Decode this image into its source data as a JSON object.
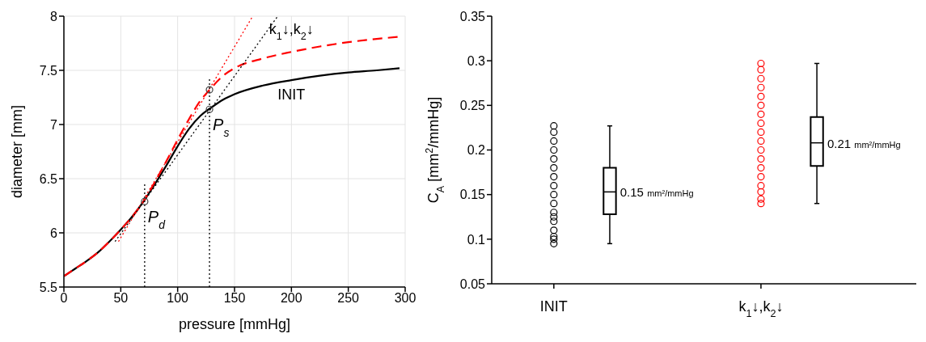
{
  "chart_data": [
    {
      "type": "line",
      "xlabel": "pressure [mmHg]",
      "ylabel": "diameter [mm]",
      "xlim": [
        0,
        300
      ],
      "ylim": [
        5.5,
        8
      ],
      "xticks": [
        0,
        50,
        100,
        150,
        200,
        250,
        300
      ],
      "yticks": [
        5.5,
        6,
        6.5,
        7,
        7.5,
        8
      ],
      "grid": true,
      "annotations": [
        {
          "text": "P$_{d}$",
          "x": 71,
          "y": 6.29
        },
        {
          "text": "P$_{s}$",
          "x": 128,
          "y": 7.14
        }
      ],
      "series": [
        {
          "name": "INIT",
          "color": "#000000",
          "line_style": "solid",
          "x": [
            0,
            10,
            20,
            30,
            40,
            50,
            60,
            70,
            80,
            90,
            100,
            110,
            120,
            130,
            140,
            150,
            175,
            200,
            225,
            250,
            275,
            295
          ],
          "values": [
            5.6,
            5.67,
            5.74,
            5.82,
            5.92,
            6.03,
            6.15,
            6.29,
            6.45,
            6.62,
            6.8,
            6.96,
            7.08,
            7.16,
            7.23,
            7.28,
            7.36,
            7.41,
            7.45,
            7.48,
            7.5,
            7.52
          ]
        },
        {
          "name": "k$_{1}$↓,k$_{2}$↓",
          "color": "#ff0000",
          "line_style": "dashed",
          "x": [
            0,
            10,
            20,
            30,
            40,
            50,
            60,
            70,
            80,
            90,
            100,
            110,
            120,
            128,
            140,
            150,
            175,
            200,
            225,
            250,
            275,
            295
          ],
          "values": [
            5.6,
            5.67,
            5.74,
            5.82,
            5.92,
            6.03,
            6.15,
            6.29,
            6.47,
            6.66,
            6.86,
            7.05,
            7.22,
            7.32,
            7.45,
            7.52,
            7.61,
            7.67,
            7.72,
            7.76,
            7.79,
            7.81
          ]
        },
        {
          "color": "#ff0000",
          "line_style": "dotted",
          "x": [
            48,
            166
          ],
          "values": [
            5.92,
            8
          ]
        },
        {
          "color": "#000000",
          "line_style": "dotted",
          "x": [
            45,
            188
          ],
          "values": [
            5.92,
            8
          ]
        },
        {
          "color": "#000000",
          "line_style": "dotted",
          "x": [
            71,
            71
          ],
          "values": [
            5.5,
            6.47
          ]
        },
        {
          "color": "#000000",
          "line_style": "dotted",
          "x": [
            128,
            128
          ],
          "values": [
            5.5,
            7.43
          ]
        },
        {
          "type": "scatter",
          "marker": "circle",
          "color": "#404040",
          "x": [
            71,
            128,
            128
          ],
          "values": [
            6.29,
            7.14,
            7.32
          ]
        }
      ]
    },
    {
      "type": "box",
      "ylabel": "C$_{A}$ [mm$^{2}$/mmHg]",
      "categories": [
        "INIT",
        "k$_{1}$↓,k$_{2}$↓"
      ],
      "ylim": [
        0.05,
        0.35
      ],
      "yticks": [
        0.05,
        0.1,
        0.15,
        0.2,
        0.25,
        0.3,
        0.35
      ],
      "boxes": [
        {
          "low": 0.095,
          "q1": 0.128,
          "median": 0.153,
          "q3": 0.18,
          "high": 0.227
        },
        {
          "low": 0.14,
          "q1": 0.182,
          "median": 0.208,
          "q3": 0.237,
          "high": 0.297
        }
      ],
      "annotations": [
        "0.15 mm²/mmHg",
        "0.21 mm²/mmHg"
      ],
      "series": [
        {
          "type": "scatter",
          "marker": "circle",
          "color": "#000000",
          "x": [
            "INIT",
            "INIT",
            "INIT",
            "INIT",
            "INIT",
            "INIT",
            "INIT",
            "INIT",
            "INIT",
            "INIT",
            "INIT",
            "INIT",
            "INIT",
            "INIT",
            "INIT",
            "INIT",
            "INIT"
          ],
          "values": [
            0.095,
            0.1,
            0.103,
            0.11,
            0.12,
            0.125,
            0.13,
            0.14,
            0.15,
            0.16,
            0.17,
            0.18,
            0.19,
            0.2,
            0.21,
            0.22,
            0.227
          ]
        },
        {
          "type": "scatter",
          "marker": "circle",
          "color": "#ff0000",
          "x": [
            "k$_{1}$↓,k$_{2}$↓",
            "k$_{1}$↓,k$_{2}$↓",
            "k$_{1}$↓,k$_{2}$↓",
            "k$_{1}$↓,k$_{2}$↓",
            "k$_{1}$↓,k$_{2}$↓",
            "k$_{1}$↓,k$_{2}$↓",
            "k$_{1}$↓,k$_{2}$↓",
            "k$_{1}$↓,k$_{2}$↓",
            "k$_{1}$↓,k$_{2}$↓",
            "k$_{1}$↓,k$_{2}$↓",
            "k$_{1}$↓,k$_{2}$↓",
            "k$_{1}$↓,k$_{2}$↓",
            "k$_{1}$↓,k$_{2}$↓",
            "k$_{1}$↓,k$_{2}$↓",
            "k$_{1}$↓,k$_{2}$↓",
            "k$_{1}$↓,k$_{2}$↓",
            "k$_{1}$↓,k$_{2}$↓",
            "k$_{1}$↓,k$_{2}$↓"
          ],
          "values": [
            0.14,
            0.145,
            0.153,
            0.16,
            0.17,
            0.18,
            0.19,
            0.2,
            0.21,
            0.22,
            0.23,
            0.24,
            0.25,
            0.26,
            0.27,
            0.28,
            0.29,
            0.297
          ]
        }
      ]
    }
  ]
}
